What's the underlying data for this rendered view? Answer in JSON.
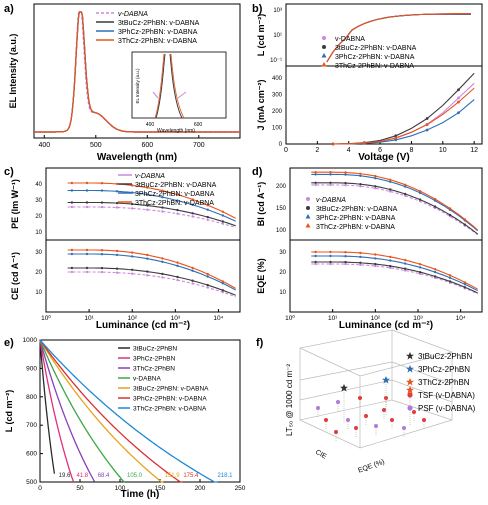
{
  "panels": {
    "a": {
      "label": "a)"
    },
    "b": {
      "label": "b)"
    },
    "c": {
      "label": "c)"
    },
    "d": {
      "label": "d)"
    },
    "e": {
      "label": "e)"
    },
    "f": {
      "label": "f)"
    }
  },
  "colors": {
    "vdabna": "#cc88e0",
    "tbu": "#3c3c3c",
    "ph": "#2f6fb5",
    "th": "#e8541c"
  },
  "chart_data": [
    {
      "id": "a",
      "type": "line",
      "xlabel": "Wavelength (nm)",
      "ylabel": "EL Intensity (a.u.)",
      "xlim": [
        380,
        780
      ],
      "xticks": [
        "400",
        "500",
        "600",
        "700"
      ],
      "series": [
        {
          "name": "v-DABNA",
          "peak": 469,
          "fwhm": 18
        },
        {
          "name": "3tBuCz-2PhBN: v-DABNA",
          "peak": 470,
          "fwhm": 19
        },
        {
          "name": "3PhCz-2PhBN: v-DABNA",
          "peak": 470,
          "fwhm": 19
        },
        {
          "name": "3ThCz-2PhBN: v-DABNA",
          "peak": 470,
          "fwhm": 19
        }
      ],
      "inset": {
        "xlabel": "Wavelength (nm)",
        "ylabel": "EL Intensity (a.u.)",
        "xticks": [
          "400",
          "600"
        ]
      }
    },
    {
      "id": "b",
      "type": "line",
      "xlabel": "Voltage (V)",
      "ylabel_top": "L (cd m⁻²)",
      "ylabel_bottom": "J (mA cm⁻²)",
      "xlim": [
        0,
        12.5
      ],
      "xticks": [
        "0",
        "2",
        "4",
        "6",
        "8",
        "10",
        "12"
      ],
      "top_yticks": [
        "10⁻¹",
        "10¹",
        "10³"
      ],
      "bottom_yticks": [
        "0",
        "100",
        "200",
        "300",
        "400"
      ],
      "legend": [
        "v-DABNA",
        "3tBuCz-2PhBN: v-DABNA",
        "3PhCz-2PhBN: v-DABNA",
        "3ThCz-2PhBN: v-DABNA"
      ],
      "series_J": [
        {
          "name": "v-DABNA",
          "x": [
            3,
            4,
            5,
            6,
            7,
            8,
            9,
            10,
            11,
            12
          ],
          "y": [
            0,
            1,
            5,
            15,
            35,
            70,
            120,
            190,
            280,
            370
          ]
        },
        {
          "name": "3tBuCz-2PhBN: v-DABNA",
          "x": [
            3,
            4,
            5,
            6,
            7,
            8,
            9,
            10,
            11,
            12
          ],
          "y": [
            0,
            2,
            8,
            22,
            50,
            95,
            155,
            235,
            330,
            430
          ]
        },
        {
          "name": "3PhCz-2PhBN: v-DABNA",
          "x": [
            3,
            4,
            5,
            6,
            7,
            8,
            9,
            10,
            11,
            12
          ],
          "y": [
            0,
            1,
            4,
            11,
            25,
            50,
            85,
            130,
            190,
            270
          ]
        },
        {
          "name": "3ThCz-2PhBN: v-DABNA",
          "x": [
            3,
            4,
            5,
            6,
            7,
            8,
            9,
            10,
            11,
            12
          ],
          "y": [
            0,
            1,
            6,
            16,
            37,
            72,
            118,
            180,
            255,
            340
          ]
        }
      ]
    },
    {
      "id": "c",
      "type": "line",
      "xlabel": "Luminance (cd m⁻²)",
      "ylabel_top": "PE (lm W⁻¹)",
      "ylabel_bottom": "CE (cd A⁻¹)",
      "xticks": [
        "10⁰",
        "10¹",
        "10²",
        "10³",
        "10⁴"
      ],
      "top_yticks": [
        "10",
        "20",
        "30",
        "40"
      ],
      "bottom_yticks": [
        "10",
        "20",
        "30"
      ],
      "legend": [
        "v-DABNA",
        "3tBuCz-2PhBN: v-DABNA",
        "3PhCz-2PhBN: v-DABNA",
        "3ThCz-2PhBN: v-DABNA"
      ]
    },
    {
      "id": "d",
      "type": "line",
      "xlabel": "Luminance (cd m⁻²)",
      "ylabel_top": "BI (cd A⁻¹)",
      "ylabel_bottom": "EQE (%)",
      "xticks": [
        "10⁰",
        "10¹",
        "10²",
        "10³",
        "10⁴"
      ],
      "top_yticks": [
        "100",
        "150",
        "200"
      ],
      "bottom_yticks": [
        "10",
        "20",
        "30"
      ],
      "legend": [
        "v-DABNA",
        "3tBuCz-2PhBN: v-DABNA",
        "3PhCz-2PhBN: v-DABNA",
        "3ThCz-2PhBN: v-DABNA"
      ]
    },
    {
      "id": "e",
      "type": "line",
      "xlabel": "Time (h)",
      "ylabel": "L (cd m⁻²)",
      "xlim": [
        0,
        250
      ],
      "ylim": [
        500,
        1000
      ],
      "xticks": [
        "0",
        "50",
        "100",
        "150",
        "200",
        "250"
      ],
      "yticks": [
        "500",
        "600",
        "700",
        "800",
        "900",
        "1000"
      ],
      "series": [
        {
          "name": "3tBuCz-2PhBN",
          "color": "#2b2b2b",
          "lt90": 19.6
        },
        {
          "name": "3PhCz-2PhBN",
          "color": "#e0307a",
          "lt90": 41.8
        },
        {
          "name": "3ThCz-2PhBN",
          "color": "#8a3fb8",
          "lt90": 68.4
        },
        {
          "name": "v-DABNA",
          "color": "#3aa845",
          "lt90": 105.0
        },
        {
          "name": "3tBuCz-2PhBN: v-DABNA",
          "color": "#e8a11c",
          "lt90": 151.9
        },
        {
          "name": "3PhCz-2PhBN: v-DABNA",
          "color": "#d93030",
          "lt90": 175.4
        },
        {
          "name": "3ThCz-2PhBN: v-DABNA",
          "color": "#1e88d8",
          "lt90": 218.1
        }
      ],
      "annotations": [
        "19.6",
        "41.8",
        "68.4",
        "105.0",
        "151.9",
        "175.4",
        "218.1"
      ]
    },
    {
      "id": "f",
      "type": "scatter",
      "zlabel": "LT₅₀ @ 1000 cd m⁻²",
      "legend": [
        "3tBuCz-2PhBN",
        "3PhCz-2PhBN",
        "3ThCz-2PhBN",
        "TSF (v-DABNA)",
        "PSF (v-DABNA)"
      ],
      "axis_fragments": [
        "CIE",
        "EQE (%)"
      ]
    }
  ]
}
